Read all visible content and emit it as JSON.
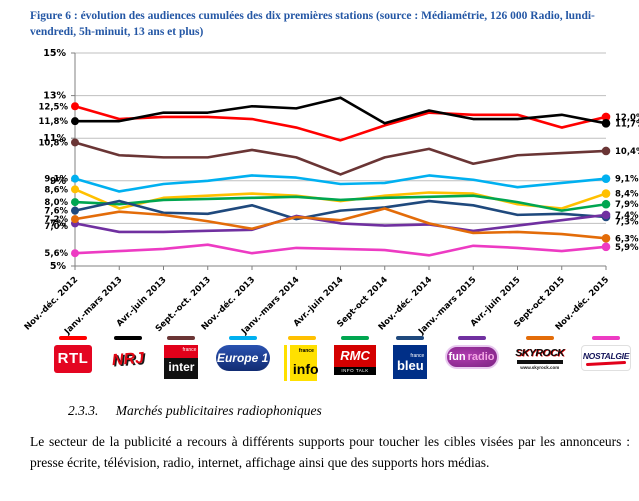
{
  "figure_caption": "Figure 6 : évolution des audiences cumulées des dix premières stations (source : Médiamétrie, 126 000 Radio, lundi-vendredi, 5h-minuit, 13 ans et plus)",
  "chart_data": {
    "type": "line",
    "x_labels": [
      "Nov.-déc. 2012",
      "Janv.-mars 2013",
      "Avr.-juin 2013",
      "Sept.-oct. 2013",
      "Nov.-déc. 2013",
      "Janv.-mars 2014",
      "Avr.-juin 2014",
      "Sept-oct 2014",
      "Nov.-déc. 2014",
      "Janv.-mars 2015",
      "Avr.-juin 2015",
      "Sept-oct 2015",
      "Nov.-déc. 2015"
    ],
    "ylim": [
      5,
      15
    ],
    "yticks": [
      15,
      13,
      11,
      9,
      7,
      5
    ],
    "ytick_labels": [
      "15%",
      "13%",
      "11%",
      "9%",
      "7%",
      "5%"
    ],
    "grid": true,
    "legend_position": "bottom",
    "series": [
      {
        "name": "RTL",
        "color": "#ff0000",
        "start_label": "12,5%",
        "end_label": "12,0%",
        "values": [
          12.5,
          11.9,
          12.0,
          12.0,
          11.9,
          11.5,
          10.9,
          11.6,
          12.2,
          12.1,
          12.1,
          11.5,
          12.0
        ]
      },
      {
        "name": "NRJ",
        "color": "#000000",
        "start_label": "11,8%",
        "end_label": "11,7%",
        "values": [
          11.8,
          11.8,
          12.2,
          12.2,
          12.5,
          12.4,
          12.9,
          11.7,
          12.3,
          11.9,
          11.9,
          12.1,
          11.7
        ]
      },
      {
        "name": "France Inter",
        "color": "#6a3535",
        "start_label": "10,8%",
        "end_label": "10,4%",
        "values": [
          10.8,
          10.2,
          10.1,
          10.1,
          10.45,
          10.1,
          9.3,
          10.1,
          10.5,
          9.8,
          10.2,
          10.3,
          10.4
        ]
      },
      {
        "name": "Europe 1",
        "color": "#00b0f0",
        "start_label": "9,1%",
        "end_label": "9,1%",
        "values": [
          9.1,
          8.5,
          8.85,
          9.0,
          9.25,
          9.15,
          8.85,
          8.9,
          9.25,
          9.05,
          8.7,
          8.9,
          9.1
        ]
      },
      {
        "name": "France Info",
        "color": "#ffc000",
        "start_label": "8,6%",
        "end_label": "8,4%",
        "values": [
          8.6,
          7.7,
          8.2,
          8.3,
          8.4,
          8.3,
          8.05,
          8.3,
          8.45,
          8.4,
          7.9,
          7.7,
          8.4
        ]
      },
      {
        "name": "RMC",
        "color": "#00a650",
        "start_label": "8,0%",
        "end_label": "7,9%",
        "values": [
          8.0,
          7.9,
          8.1,
          8.15,
          8.2,
          8.25,
          8.1,
          8.2,
          8.25,
          8.3,
          8.0,
          7.6,
          7.9
        ]
      },
      {
        "name": "France Bleu",
        "color": "#1f497d",
        "start_label": "7,6%",
        "end_label": "7,3%",
        "values": [
          7.6,
          8.05,
          7.5,
          7.45,
          7.85,
          7.2,
          7.6,
          7.75,
          8.05,
          7.85,
          7.4,
          7.45,
          7.3
        ]
      },
      {
        "name": "Fun Radio",
        "color": "#7030a0",
        "start_label": "7,0%",
        "end_label": "7,4%",
        "values": [
          7.0,
          6.6,
          6.6,
          6.65,
          6.7,
          7.35,
          7.0,
          6.9,
          6.95,
          6.65,
          6.9,
          7.15,
          7.4
        ]
      },
      {
        "name": "Skyrock",
        "color": "#e36c09",
        "start_label": "7,2%",
        "end_label": "6,3%",
        "values": [
          7.2,
          7.55,
          7.4,
          7.1,
          6.75,
          7.3,
          7.15,
          7.7,
          7.0,
          6.55,
          6.6,
          6.5,
          6.3
        ]
      },
      {
        "name": "Nostalgie",
        "color": "#ed3bc3",
        "start_label": "5,6%",
        "end_label": "5,9%",
        "values": [
          5.6,
          5.7,
          5.8,
          6.0,
          5.6,
          5.85,
          5.8,
          5.75,
          5.5,
          5.95,
          5.85,
          5.7,
          5.9
        ]
      }
    ]
  },
  "logos": {
    "rtl": "RTL",
    "nrj": "NRJ",
    "inter_top": "france",
    "inter_text": "inter",
    "europe1": "Europe 1",
    "info_top": "france",
    "info_text": "info",
    "rmc": "RMC",
    "rmc_sub": "INFO TALK SPORT",
    "bleu_top": "france",
    "bleu_text": "bleu",
    "fun_1": "fun",
    "fun_2": "radio",
    "skyrock": "SKYROCK",
    "skyrock_sub": "www.skyrock.com",
    "nostalgie": "NOSTALGIE"
  },
  "section_heading": {
    "number": "2.3.3.",
    "title": "Marchés publicitaires radiophoniques"
  },
  "paragraph": "Le secteur de la publicité a recours à différents supports pour toucher les cibles visées par les annonceurs : presse écrite, télévision, radio, internet, affichage ainsi que des supports hors médias."
}
